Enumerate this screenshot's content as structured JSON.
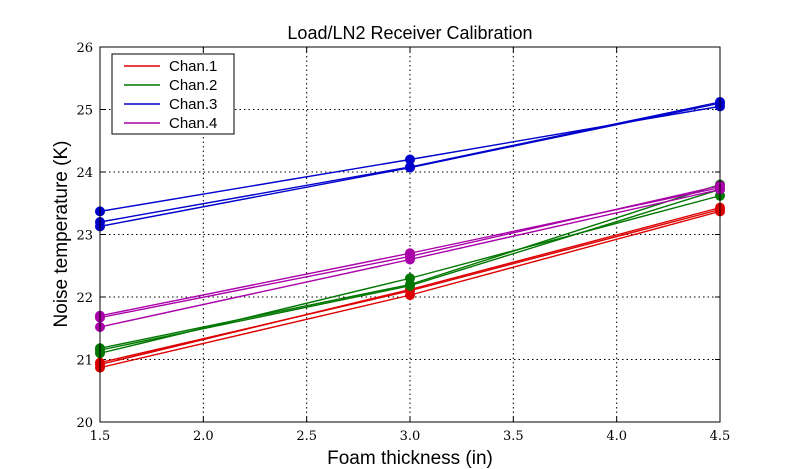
{
  "chart_data": {
    "type": "line",
    "title": "Load/LN2 Receiver Calibration",
    "xlabel": "Foam thickness (in)",
    "ylabel": "Noise temperature (K)",
    "xlim": [
      1.5,
      4.5
    ],
    "ylim": [
      20,
      26
    ],
    "xticks": [
      "1.5",
      "2.0",
      "2.5",
      "3.0",
      "3.5",
      "4.0",
      "4.5"
    ],
    "yticks": [
      "20",
      "21",
      "22",
      "23",
      "24",
      "25",
      "26"
    ],
    "grid": true,
    "legend_position": "top-left",
    "x": [
      1.5,
      3.0,
      4.5
    ],
    "series": [
      {
        "name": "Chan.1",
        "color": "#dd0000",
        "lines": [
          [
            20.87,
            22.03,
            23.37
          ],
          [
            20.92,
            22.12,
            23.43
          ],
          [
            20.95,
            22.1,
            23.4
          ]
        ]
      },
      {
        "name": "Chan.2",
        "color": "#007700",
        "lines": [
          [
            21.1,
            22.3,
            23.62
          ],
          [
            21.15,
            22.18,
            23.72
          ],
          [
            21.18,
            22.2,
            23.8
          ]
        ]
      },
      {
        "name": "Chan.3",
        "color": "#0000cc",
        "lines": [
          [
            23.13,
            24.07,
            25.1
          ],
          [
            23.2,
            24.08,
            25.12
          ],
          [
            23.37,
            24.2,
            25.05
          ]
        ]
      },
      {
        "name": "Chan.4",
        "color": "#aa00aa",
        "lines": [
          [
            21.52,
            22.6,
            23.72
          ],
          [
            21.67,
            22.65,
            23.78
          ],
          [
            21.7,
            22.7,
            23.75
          ]
        ]
      }
    ]
  }
}
